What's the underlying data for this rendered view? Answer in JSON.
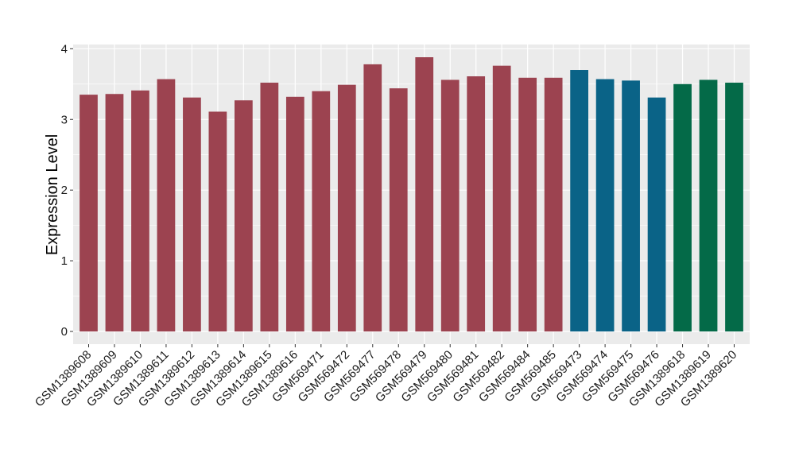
{
  "chart_data": {
    "type": "bar",
    "title": "",
    "xlabel": "",
    "ylabel": "Expression Level",
    "ylim": [
      -0.18,
      4.06
    ],
    "yticks": [
      0,
      1,
      2,
      3,
      4
    ],
    "grid": true,
    "legend": "none",
    "colors": {
      "panel_background": "#EBEBEB",
      "grid": "#FFFFFF",
      "group_1": "#9C4350",
      "group_2": "#0A6387",
      "group_3": "#046A48"
    },
    "categories": [
      "GSM1389608",
      "GSM1389609",
      "GSM1389610",
      "GSM1389611",
      "GSM1389612",
      "GSM1389613",
      "GSM1389614",
      "GSM1389615",
      "GSM1389616",
      "GSM569471",
      "GSM569472",
      "GSM569477",
      "GSM569478",
      "GSM569479",
      "GSM569480",
      "GSM569481",
      "GSM569482",
      "GSM569484",
      "GSM569485",
      "GSM569473",
      "GSM569474",
      "GSM569475",
      "GSM569476",
      "GSM1389618",
      "GSM1389619",
      "GSM1389620"
    ],
    "values": [
      3.35,
      3.36,
      3.41,
      3.57,
      3.31,
      3.11,
      3.27,
      3.52,
      3.32,
      3.4,
      3.49,
      3.78,
      3.44,
      3.88,
      3.56,
      3.61,
      3.76,
      3.59,
      3.59,
      3.7,
      3.57,
      3.55,
      3.31,
      3.5,
      3.56,
      3.52
    ],
    "bar_groups": [
      "group_1",
      "group_1",
      "group_1",
      "group_1",
      "group_1",
      "group_1",
      "group_1",
      "group_1",
      "group_1",
      "group_1",
      "group_1",
      "group_1",
      "group_1",
      "group_1",
      "group_1",
      "group_1",
      "group_1",
      "group_1",
      "group_1",
      "group_2",
      "group_2",
      "group_2",
      "group_2",
      "group_3",
      "group_3",
      "group_3"
    ]
  }
}
